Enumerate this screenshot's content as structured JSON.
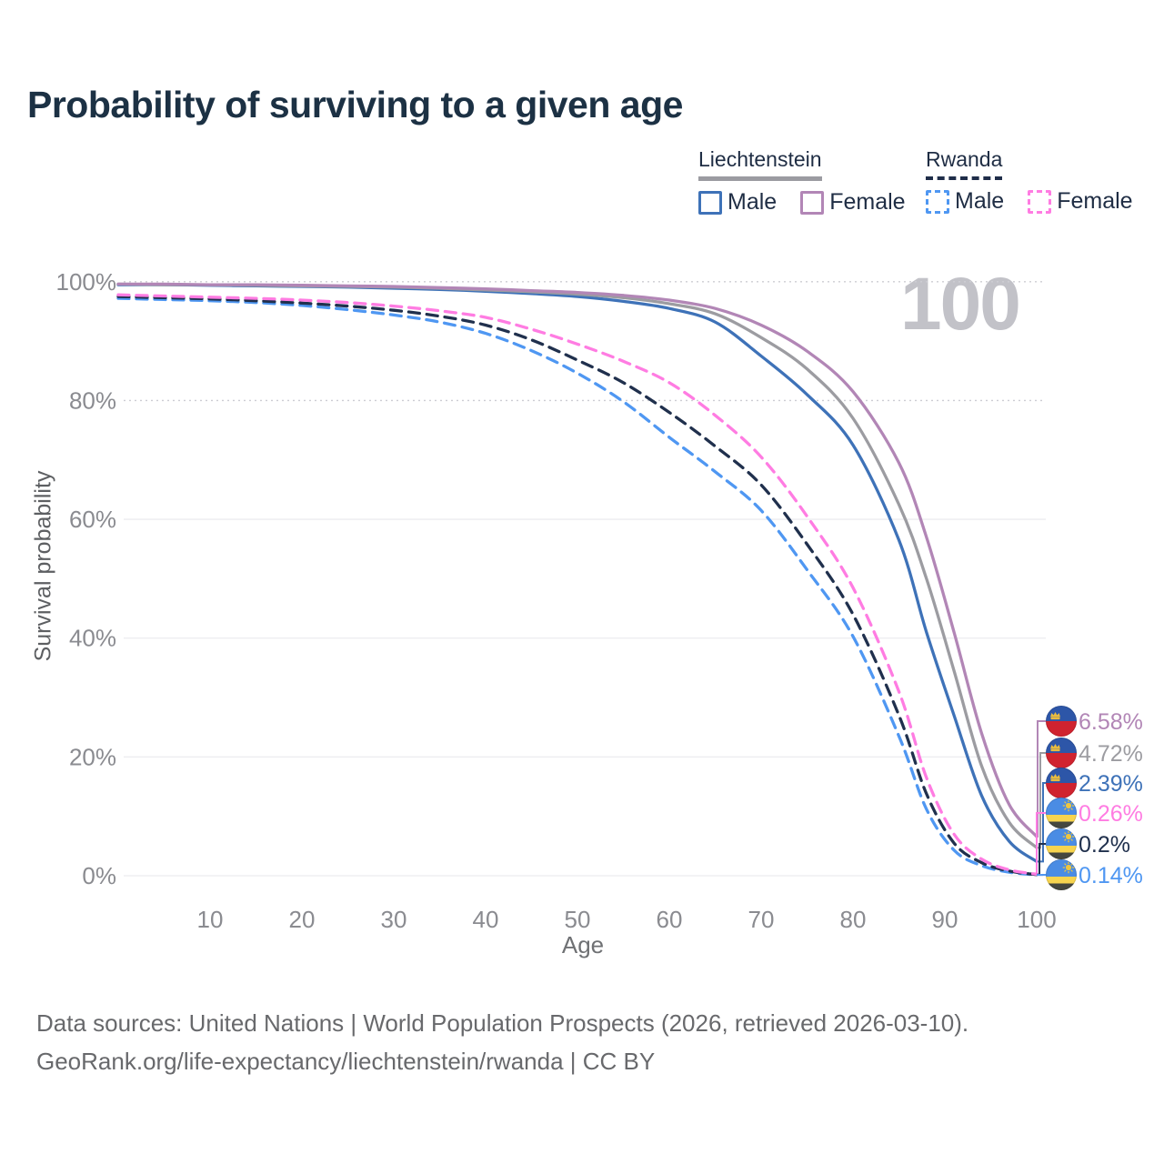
{
  "title": "Probability of surviving to a given age",
  "watermark": "100",
  "legend": {
    "groups": [
      {
        "name": "Liechtenstein",
        "line_style": "solid",
        "underline_color": "#9b9ba1",
        "items": [
          {
            "label": "Male",
            "color": "#3e72b8",
            "dashed": false
          },
          {
            "label": "Female",
            "color": "#b286b6",
            "dashed": false
          }
        ]
      },
      {
        "name": "Rwanda",
        "line_style": "dashed",
        "underline_color": "#1f2d49",
        "items": [
          {
            "label": "Male",
            "color": "#4f97f2",
            "dashed": true
          },
          {
            "label": "Female",
            "color": "#ff7ce2",
            "dashed": true
          }
        ]
      }
    ]
  },
  "chart_data": {
    "type": "line",
    "title": "Probability of surviving to a given age",
    "xlabel": "Age",
    "ylabel": "Survival probability",
    "xlim": [
      0,
      100
    ],
    "ylim": [
      0,
      100
    ],
    "grid": "horizontal",
    "legend_position": "top-right",
    "x_ticks": [
      10,
      20,
      30,
      40,
      50,
      60,
      70,
      80,
      90,
      100
    ],
    "y_ticks": [
      {
        "value": 0,
        "label": "0%"
      },
      {
        "value": 20,
        "label": "20%"
      },
      {
        "value": 40,
        "label": "40%"
      },
      {
        "value": 60,
        "label": "60%"
      },
      {
        "value": 80,
        "label": "80%"
      },
      {
        "value": 100,
        "label": "100%"
      }
    ],
    "ages": [
      0,
      5,
      10,
      15,
      20,
      25,
      30,
      35,
      40,
      45,
      50,
      55,
      60,
      65,
      70,
      75,
      80,
      85,
      88,
      91,
      94,
      97,
      100
    ],
    "series": [
      {
        "name": "Liechtenstein Female",
        "country": "Liechtenstein",
        "sex": "Female",
        "color": "#b286b6",
        "dashed": false,
        "end_label": "6.58%",
        "end_value": 6.58,
        "values": [
          99.6,
          99.6,
          99.5,
          99.5,
          99.4,
          99.3,
          99.2,
          99.0,
          98.8,
          98.5,
          98.2,
          97.7,
          96.9,
          95.5,
          92.7,
          88.3,
          81.5,
          69.5,
          57.0,
          41.0,
          24.0,
          12.0,
          6.58
        ]
      },
      {
        "name": "Liechtenstein Both sexes",
        "country": "Liechtenstein",
        "sex": "Both",
        "color": "#9c9ca1",
        "dashed": false,
        "end_label": "4.72%",
        "end_value": 4.72,
        "values": [
          99.6,
          99.5,
          99.5,
          99.4,
          99.3,
          99.2,
          99.1,
          98.9,
          98.6,
          98.3,
          97.9,
          97.3,
          96.3,
          94.6,
          90.6,
          85.3,
          77.0,
          62.5,
          50.0,
          34.5,
          18.5,
          9.0,
          4.72
        ]
      },
      {
        "name": "Liechtenstein Male",
        "country": "Liechtenstein",
        "sex": "Male",
        "color": "#3e72b8",
        "dashed": false,
        "end_label": "2.39%",
        "end_value": 2.39,
        "values": [
          99.5,
          99.5,
          99.4,
          99.3,
          99.2,
          99.1,
          98.9,
          98.7,
          98.4,
          98.0,
          97.5,
          96.7,
          95.5,
          93.2,
          87.5,
          81.0,
          72.5,
          56.5,
          41.0,
          27.0,
          13.5,
          5.8,
          2.39
        ]
      },
      {
        "name": "Rwanda Female",
        "country": "Rwanda",
        "sex": "Female",
        "color": "#ff7ce2",
        "dashed": true,
        "end_label": "0.26%",
        "end_value": 0.26,
        "values": [
          97.8,
          97.6,
          97.4,
          97.2,
          96.9,
          96.5,
          95.9,
          95.1,
          94.0,
          92.0,
          89.5,
          86.6,
          83.0,
          77.5,
          70.5,
          60.5,
          48.5,
          31.0,
          16.5,
          7.0,
          2.8,
          1.0,
          0.26
        ]
      },
      {
        "name": "Rwanda Both sexes",
        "country": "Rwanda",
        "sex": "Both",
        "color": "#20304d",
        "dashed": true,
        "end_label": "0.2%",
        "end_value": 0.2,
        "values": [
          97.5,
          97.3,
          97.1,
          96.8,
          96.4,
          95.9,
          95.2,
          94.2,
          92.7,
          90.2,
          86.8,
          83.0,
          78.0,
          72.3,
          65.8,
          55.8,
          44.0,
          27.0,
          13.8,
          5.5,
          2.2,
          0.8,
          0.2
        ]
      },
      {
        "name": "Rwanda Male",
        "country": "Rwanda",
        "sex": "Male",
        "color": "#4f97f2",
        "dashed": true,
        "end_label": "0.14%",
        "end_value": 0.14,
        "values": [
          97.2,
          97.0,
          96.8,
          96.5,
          96.0,
          95.3,
          94.4,
          93.2,
          91.3,
          88.4,
          84.6,
          79.8,
          73.8,
          68.0,
          61.5,
          51.5,
          40.3,
          23.5,
          11.2,
          4.3,
          1.7,
          0.6,
          0.14
        ]
      }
    ]
  },
  "icons": {
    "liechtenstein_flag": "circle: blue top half, red bottom half, gold crown upper-left",
    "rwanda_flag": "circle: blue top with gold sun, yellow band, dark green band"
  },
  "footer": {
    "line1": "Data sources: United Nations | World Population Prospects (2026, retrieved 2026-03-10).",
    "line2": "GeoRank.org/life-expectancy/liechtenstein/rwanda | CC BY"
  }
}
